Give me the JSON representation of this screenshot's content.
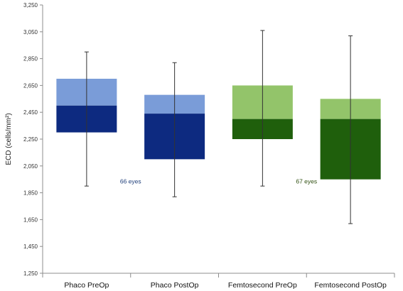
{
  "chart_data": {
    "type": "box",
    "title": "",
    "xlabel": "",
    "ylabel": "ECD (cells/mm²)",
    "ylim": [
      1250,
      3250
    ],
    "yticks": [
      1250,
      1450,
      1650,
      1850,
      2050,
      2250,
      2450,
      2650,
      2850,
      3050,
      3250
    ],
    "ytick_labels": [
      "1,250",
      "1,450",
      "1,650",
      "1,850",
      "2,050",
      "2,250",
      "2,450",
      "2,650",
      "2,850",
      "3,050",
      "3,250"
    ],
    "grid": false,
    "legend": false,
    "categories": [
      "Phaco PreOp",
      "Phaco PostOp",
      "Femtosecond PreOp",
      "Femtosecond PostOp"
    ],
    "boxes": [
      {
        "category": "Phaco PreOp",
        "min": 1900,
        "q1": 2300,
        "median": 2500,
        "q3": 2700,
        "max": 2900,
        "lower_color": "#0d2a80",
        "upper_color": "#7a9cd8"
      },
      {
        "category": "Phaco PostOp",
        "min": 1820,
        "q1": 2100,
        "median": 2440,
        "q3": 2580,
        "max": 2820,
        "lower_color": "#0d2a80",
        "upper_color": "#7a9cd8"
      },
      {
        "category": "Femtosecond PreOp",
        "min": 1900,
        "q1": 2250,
        "median": 2400,
        "q3": 2650,
        "max": 3060,
        "lower_color": "#1f5f0c",
        "upper_color": "#93c46a"
      },
      {
        "category": "Femtosecond PostOp",
        "min": 1620,
        "q1": 1950,
        "median": 2400,
        "q3": 2550,
        "max": 3020,
        "lower_color": "#1f5f0c",
        "upper_color": "#93c46a"
      }
    ],
    "annotations": [
      {
        "text": "66 eyes",
        "between": [
          "Phaco PreOp",
          "Phaco PostOp"
        ],
        "y": 1935,
        "color": "#1f3f7a"
      },
      {
        "text": "67 eyes",
        "between": [
          "Femtosecond PreOp",
          "Femtosecond PostOp"
        ],
        "y": 1935,
        "color": "#2f4f10"
      }
    ]
  }
}
